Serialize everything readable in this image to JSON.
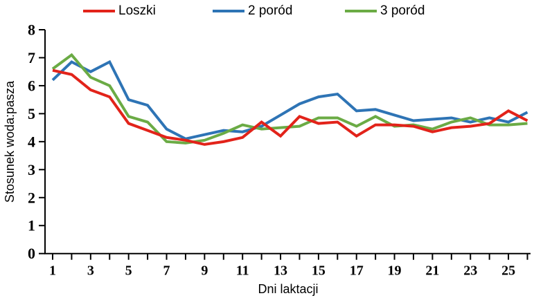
{
  "chart_data": {
    "type": "line",
    "title": "",
    "xlabel": "Dni laktacji",
    "ylabel": "Stosunek woda:pasza",
    "ylim": [
      0,
      8
    ],
    "yticks": [
      0,
      1,
      2,
      3,
      4,
      5,
      6,
      7,
      8
    ],
    "x": [
      1,
      2,
      3,
      4,
      5,
      6,
      7,
      8,
      9,
      10,
      11,
      12,
      13,
      14,
      15,
      16,
      17,
      18,
      19,
      20,
      21,
      22,
      23,
      24,
      25,
      26
    ],
    "xtick_labels": [
      1,
      3,
      5,
      7,
      9,
      11,
      13,
      15,
      17,
      19,
      21,
      23,
      25
    ],
    "grid": false,
    "legend_position": "top",
    "axis_color": "#000000",
    "series": [
      {
        "name": "Loszki",
        "color": "#e2231a",
        "values": [
          6.55,
          6.4,
          5.85,
          5.6,
          4.65,
          4.4,
          4.15,
          4.05,
          3.9,
          4.0,
          4.15,
          4.7,
          4.2,
          4.9,
          4.65,
          4.7,
          4.2,
          4.6,
          4.6,
          4.55,
          4.35,
          4.5,
          4.55,
          4.65,
          5.1,
          4.75
        ]
      },
      {
        "name": "2 poród",
        "color": "#2e74b5",
        "values": [
          6.2,
          6.85,
          6.5,
          6.85,
          5.5,
          5.3,
          4.45,
          4.1,
          4.25,
          4.4,
          4.35,
          4.55,
          4.95,
          5.35,
          5.6,
          5.7,
          5.1,
          5.15,
          4.95,
          4.75,
          4.8,
          4.85,
          4.7,
          4.85,
          4.7,
          5.05
        ]
      },
      {
        "name": "3 poród",
        "color": "#6bab45",
        "values": [
          6.6,
          7.1,
          6.3,
          6.0,
          4.9,
          4.7,
          4.0,
          3.95,
          4.05,
          4.3,
          4.6,
          4.45,
          4.5,
          4.55,
          4.85,
          4.85,
          4.55,
          4.9,
          4.55,
          4.6,
          4.45,
          4.7,
          4.85,
          4.6,
          4.6,
          4.65
        ]
      }
    ]
  }
}
